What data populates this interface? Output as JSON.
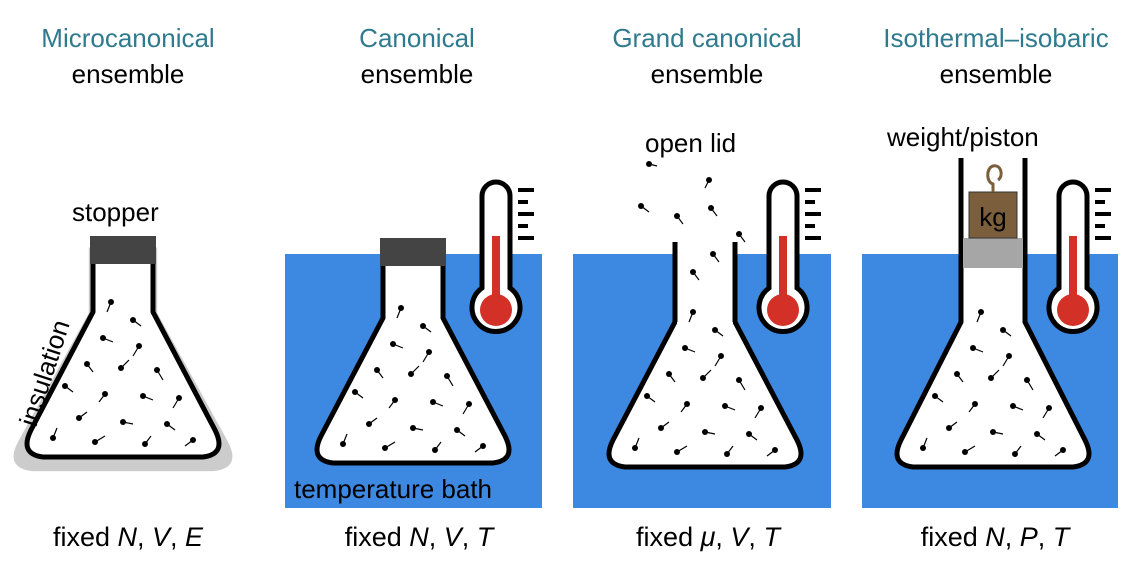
{
  "colors": {
    "title": "#2f7a8e",
    "bath": "#3d88e0",
    "insulation": "#cccccc",
    "stopper": "#444444",
    "mercury": "#d33027",
    "weight": "#7b5e3c",
    "piston": "#a6a6a6"
  },
  "panels": [
    {
      "title": "Microcanonical",
      "subtitle": "ensemble",
      "fixed_prefix": "fixed ",
      "vars": [
        "N",
        "V",
        "E"
      ],
      "labels": {
        "top": "stopper",
        "side": "insulation"
      }
    },
    {
      "title": "Canonical",
      "subtitle": "ensemble",
      "fixed_prefix": "fixed ",
      "vars": [
        "N",
        "V",
        "T"
      ],
      "labels": {
        "bottom": "temperature bath"
      }
    },
    {
      "title": "Grand canonical",
      "subtitle": "ensemble",
      "fixed_prefix": "fixed ",
      "vars": [
        "μ",
        "V",
        "T"
      ],
      "labels": {
        "top": "open lid"
      }
    },
    {
      "title": "Isothermal–isobaric",
      "subtitle": "ensemble",
      "fixed_prefix": "fixed ",
      "vars": [
        "N",
        "P",
        "T"
      ],
      "labels": {
        "top": "weight/piston",
        "weight": "kg"
      }
    }
  ]
}
